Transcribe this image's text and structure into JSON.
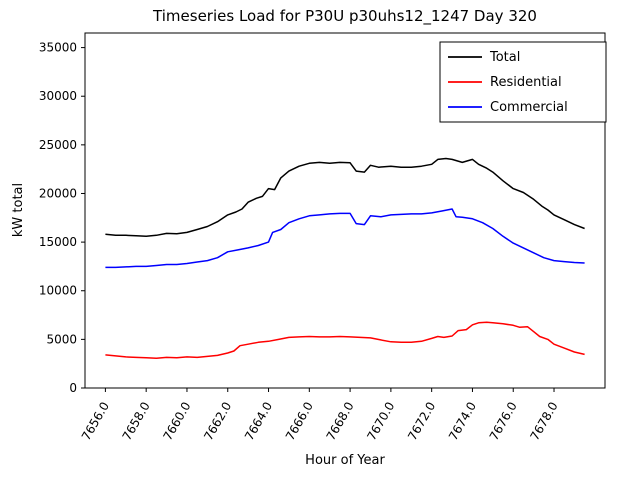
{
  "chart_data": {
    "type": "line",
    "title": "Timeseries Load for P30U p30uhs12_1247  Day 320",
    "xlabel": "Hour of Year",
    "ylabel": "kW total",
    "xlim": [
      7655.0,
      7680.5
    ],
    "ylim": [
      0,
      36500
    ],
    "grid": false,
    "legend_position": "upper right",
    "x_ticks": [
      7656,
      7658,
      7660,
      7662,
      7664,
      7666,
      7668,
      7670,
      7672,
      7674,
      7676,
      7678
    ],
    "x_tick_labels": [
      "7656.0",
      "7658.0",
      "7660.0",
      "7662.0",
      "7664.0",
      "7666.0",
      "7668.0",
      "7670.0",
      "7672.0",
      "7674.0",
      "7676.0",
      "7678.0"
    ],
    "y_ticks": [
      0,
      5000,
      10000,
      15000,
      20000,
      25000,
      30000,
      35000
    ],
    "y_tick_labels": [
      "0",
      "5000",
      "10000",
      "15000",
      "20000",
      "25000",
      "30000",
      "35000"
    ],
    "series": [
      {
        "name": "Total",
        "color": "#000000",
        "points": [
          [
            7656,
            15800
          ],
          [
            7656.5,
            15700
          ],
          [
            7657,
            15700
          ],
          [
            7657.5,
            15650
          ],
          [
            7658,
            15600
          ],
          [
            7658.5,
            15700
          ],
          [
            7659,
            15900
          ],
          [
            7659.5,
            15850
          ],
          [
            7660,
            16000
          ],
          [
            7660.5,
            16300
          ],
          [
            7661,
            16600
          ],
          [
            7661.5,
            17100
          ],
          [
            7662,
            17800
          ],
          [
            7662.4,
            18100
          ],
          [
            7662.7,
            18400
          ],
          [
            7663,
            19100
          ],
          [
            7663.4,
            19500
          ],
          [
            7663.7,
            19700
          ],
          [
            7664,
            20500
          ],
          [
            7664.3,
            20400
          ],
          [
            7664.6,
            21600
          ],
          [
            7665,
            22300
          ],
          [
            7665.5,
            22800
          ],
          [
            7666,
            23100
          ],
          [
            7666.5,
            23200
          ],
          [
            7667,
            23100
          ],
          [
            7667.5,
            23200
          ],
          [
            7668,
            23150
          ],
          [
            7668.3,
            22300
          ],
          [
            7668.7,
            22200
          ],
          [
            7669,
            22900
          ],
          [
            7669.4,
            22700
          ],
          [
            7670,
            22800
          ],
          [
            7670.5,
            22700
          ],
          [
            7671,
            22700
          ],
          [
            7671.5,
            22800
          ],
          [
            7672,
            23000
          ],
          [
            7672.3,
            23500
          ],
          [
            7672.7,
            23600
          ],
          [
            7673,
            23500
          ],
          [
            7673.5,
            23200
          ],
          [
            7674,
            23500
          ],
          [
            7674.3,
            23000
          ],
          [
            7674.7,
            22600
          ],
          [
            7675,
            22200
          ],
          [
            7675.5,
            21300
          ],
          [
            7676,
            20500
          ],
          [
            7676.5,
            20100
          ],
          [
            7677,
            19400
          ],
          [
            7677.4,
            18700
          ],
          [
            7677.7,
            18300
          ],
          [
            7678,
            17800
          ],
          [
            7678.5,
            17300
          ],
          [
            7679,
            16800
          ],
          [
            7679.5,
            16400
          ]
        ]
      },
      {
        "name": "Residential",
        "color": "#ff0000",
        "points": [
          [
            7656,
            3400
          ],
          [
            7656.5,
            3300
          ],
          [
            7657,
            3200
          ],
          [
            7657.5,
            3150
          ],
          [
            7658,
            3100
          ],
          [
            7658.5,
            3050
          ],
          [
            7659,
            3150
          ],
          [
            7659.5,
            3100
          ],
          [
            7660,
            3200
          ],
          [
            7660.5,
            3150
          ],
          [
            7661,
            3250
          ],
          [
            7661.5,
            3350
          ],
          [
            7662,
            3600
          ],
          [
            7662.3,
            3800
          ],
          [
            7662.6,
            4350
          ],
          [
            7663,
            4500
          ],
          [
            7663.5,
            4700
          ],
          [
            7664,
            4800
          ],
          [
            7664.5,
            5000
          ],
          [
            7665,
            5200
          ],
          [
            7665.5,
            5250
          ],
          [
            7666,
            5300
          ],
          [
            7666.5,
            5250
          ],
          [
            7667,
            5250
          ],
          [
            7667.5,
            5300
          ],
          [
            7668,
            5250
          ],
          [
            7668.5,
            5200
          ],
          [
            7669,
            5150
          ],
          [
            7669.5,
            4950
          ],
          [
            7670,
            4750
          ],
          [
            7670.5,
            4700
          ],
          [
            7671,
            4700
          ],
          [
            7671.5,
            4800
          ],
          [
            7672,
            5100
          ],
          [
            7672.3,
            5300
          ],
          [
            7672.6,
            5200
          ],
          [
            7673,
            5350
          ],
          [
            7673.3,
            5900
          ],
          [
            7673.7,
            6000
          ],
          [
            7674,
            6500
          ],
          [
            7674.3,
            6700
          ],
          [
            7674.7,
            6750
          ],
          [
            7675,
            6700
          ],
          [
            7675.5,
            6600
          ],
          [
            7676,
            6450
          ],
          [
            7676.3,
            6250
          ],
          [
            7676.7,
            6300
          ],
          [
            7677,
            5800
          ],
          [
            7677.3,
            5300
          ],
          [
            7677.7,
            5000
          ],
          [
            7678,
            4500
          ],
          [
            7678.5,
            4100
          ],
          [
            7679,
            3700
          ],
          [
            7679.5,
            3450
          ]
        ]
      },
      {
        "name": "Commercial",
        "color": "#0000ff",
        "points": [
          [
            7656,
            12400
          ],
          [
            7656.5,
            12400
          ],
          [
            7657,
            12450
          ],
          [
            7657.5,
            12500
          ],
          [
            7658,
            12500
          ],
          [
            7658.5,
            12600
          ],
          [
            7659,
            12700
          ],
          [
            7659.5,
            12700
          ],
          [
            7660,
            12800
          ],
          [
            7660.5,
            12950
          ],
          [
            7661,
            13100
          ],
          [
            7661.5,
            13400
          ],
          [
            7662,
            14000
          ],
          [
            7662.5,
            14200
          ],
          [
            7663,
            14400
          ],
          [
            7663.5,
            14650
          ],
          [
            7664,
            15000
          ],
          [
            7664.2,
            16000
          ],
          [
            7664.6,
            16300
          ],
          [
            7665,
            17000
          ],
          [
            7665.5,
            17400
          ],
          [
            7666,
            17700
          ],
          [
            7666.5,
            17800
          ],
          [
            7667,
            17900
          ],
          [
            7667.5,
            17950
          ],
          [
            7668,
            17950
          ],
          [
            7668.3,
            16900
          ],
          [
            7668.7,
            16800
          ],
          [
            7669,
            17700
          ],
          [
            7669.5,
            17600
          ],
          [
            7670,
            17800
          ],
          [
            7670.5,
            17850
          ],
          [
            7671,
            17900
          ],
          [
            7671.5,
            17900
          ],
          [
            7672,
            18000
          ],
          [
            7672.5,
            18200
          ],
          [
            7673,
            18400
          ],
          [
            7673.2,
            17600
          ],
          [
            7673.5,
            17550
          ],
          [
            7674,
            17400
          ],
          [
            7674.5,
            17000
          ],
          [
            7675,
            16400
          ],
          [
            7675.5,
            15600
          ],
          [
            7676,
            14900
          ],
          [
            7676.5,
            14400
          ],
          [
            7677,
            13900
          ],
          [
            7677.5,
            13400
          ],
          [
            7678,
            13100
          ],
          [
            7678.5,
            13000
          ],
          [
            7679,
            12900
          ],
          [
            7679.5,
            12850
          ]
        ]
      }
    ]
  }
}
